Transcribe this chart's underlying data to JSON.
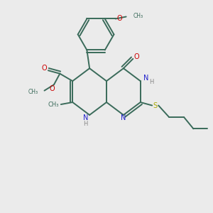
{
  "bg_color": "#ebebeb",
  "bond_color": "#3a6b5a",
  "n_color": "#2020cc",
  "o_color": "#cc0000",
  "s_color": "#aaaa00",
  "h_color": "#888888",
  "figsize": [
    3.0,
    3.0
  ],
  "dpi": 100,
  "xlim": [
    0,
    10
  ],
  "ylim": [
    0,
    10
  ]
}
